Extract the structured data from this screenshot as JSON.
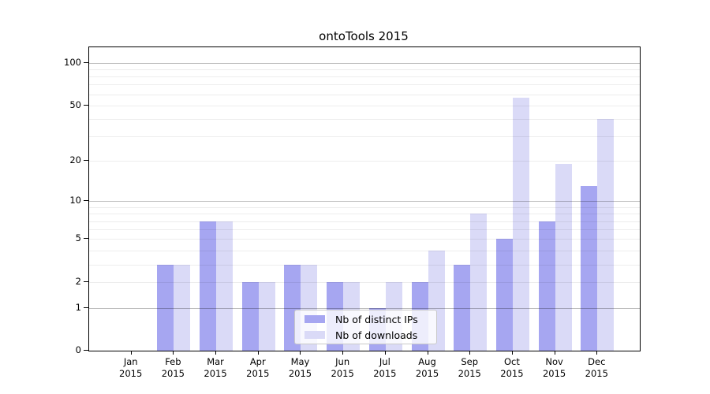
{
  "chart_data": {
    "type": "bar",
    "title": "ontoTools 2015",
    "categories": [
      "Jan",
      "Feb",
      "Mar",
      "Apr",
      "May",
      "Jun",
      "Jul",
      "Aug",
      "Sep",
      "Oct",
      "Nov",
      "Dec"
    ],
    "x_year": "2015",
    "series": [
      {
        "name": "Nb of distinct IPs",
        "color": "#a6a6f1",
        "values": [
          0,
          3,
          7,
          2,
          3,
          2,
          1,
          2,
          3,
          5,
          7,
          13
        ]
      },
      {
        "name": "Nb of downloads",
        "color": "#dadaf7",
        "values": [
          0,
          3,
          7,
          2,
          3,
          2,
          2,
          4,
          8,
          57,
          19,
          40
        ]
      }
    ],
    "yscale": "log1p",
    "ylim": [
      0,
      128
    ],
    "yticks": [
      0,
      1,
      2,
      5,
      10,
      20,
      50,
      100
    ],
    "major_gridlines": [
      1,
      10,
      100
    ],
    "minor_gridlines": [
      2,
      3,
      4,
      5,
      6,
      7,
      8,
      9,
      20,
      30,
      40,
      50,
      60,
      70,
      80,
      90
    ],
    "grid": true,
    "legend_position": "lower-center"
  },
  "colors": {
    "axis": "#000000",
    "major_grid": "rgba(0,0,0,0.25)",
    "minor_grid": "rgba(0,0,0,0.07)",
    "legend_border": "#c9c9c9"
  }
}
